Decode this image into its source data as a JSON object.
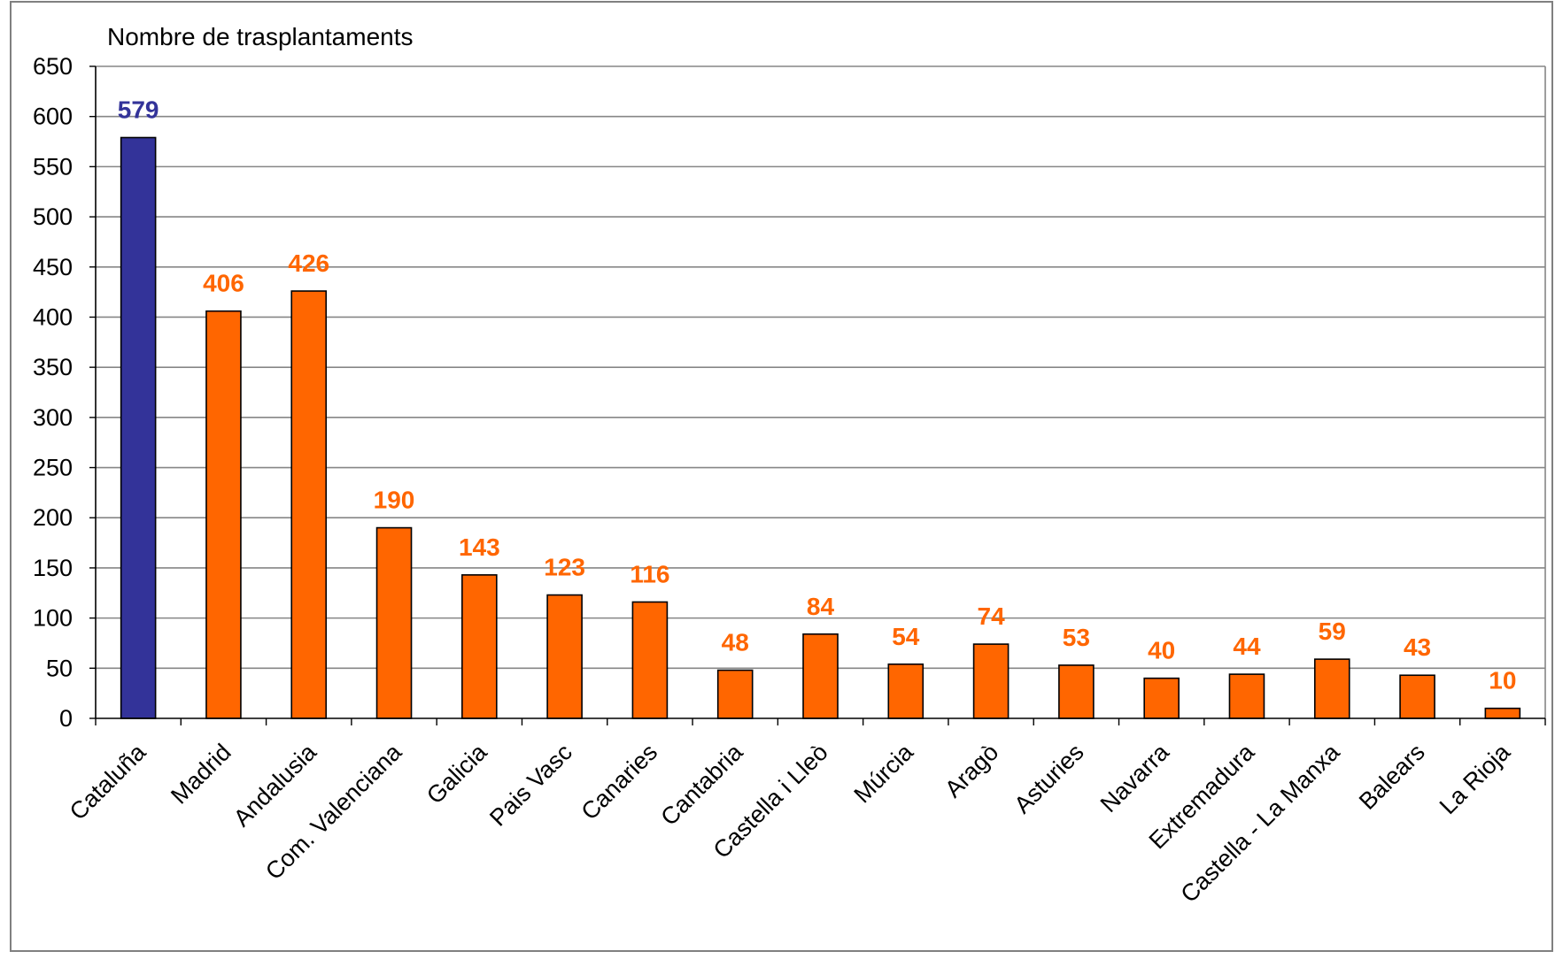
{
  "chart_data": {
    "type": "bar",
    "ylabel": "Nombre de trasplantaments",
    "ylim": [
      0,
      650
    ],
    "yticks": [
      0,
      50,
      100,
      150,
      200,
      250,
      300,
      350,
      400,
      450,
      500,
      550,
      600,
      650
    ],
    "grid": true,
    "categories": [
      "Cataluña",
      "Madrid",
      "Andalusia",
      "Com. Valenciana",
      "Galicia",
      "Pais Vasc",
      "Canaries",
      "Cantabria",
      "Castella i Lleò",
      "Múrcia",
      "Aragò",
      "Asturies",
      "Navarra",
      "Extremadura",
      "Castella - La Manxa",
      "Balears",
      "La Rioja"
    ],
    "values": [
      579,
      406,
      426,
      190,
      143,
      123,
      116,
      48,
      84,
      54,
      74,
      53,
      40,
      44,
      59,
      43,
      10
    ],
    "colors": {
      "highlight": "#333399",
      "default": "#FF6600",
      "grid": "#868686",
      "axis": "#000000"
    },
    "highlight_index": 0
  }
}
